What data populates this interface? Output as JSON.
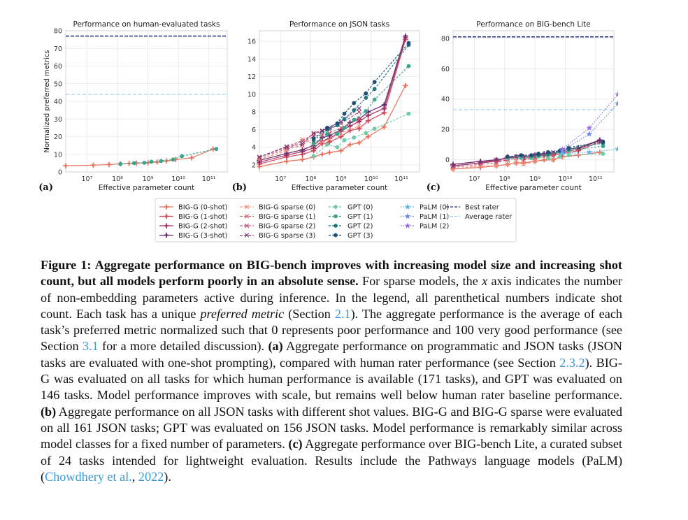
{
  "figure": {
    "panels": [
      {
        "letter": "(a)",
        "title": "Performance on human-evaluated tasks",
        "ylabel": "Normalized preferred metrics",
        "xlabel": "Effective parameter count",
        "yticks": [
          "0",
          "10",
          "20",
          "30",
          "40",
          "50",
          "60",
          "70",
          "80"
        ],
        "xticks": [
          "10⁷",
          "10⁸",
          "10⁹",
          "10¹⁰",
          "10¹¹"
        ]
      },
      {
        "letter": "(b)",
        "title": "Performance on JSON tasks",
        "ylabel": "",
        "xlabel": "Effective parameter count",
        "yticks": [
          "2",
          "4",
          "6",
          "8",
          "10",
          "12",
          "14",
          "16"
        ],
        "xticks": [
          "10⁷",
          "10⁸",
          "10⁹",
          "10¹⁰",
          "10¹¹"
        ]
      },
      {
        "letter": "(c)",
        "title": "Performance on BIG-bench Lite",
        "ylabel": "",
        "xlabel": "Effective parameter count",
        "yticks": [
          "0",
          "20",
          "40",
          "60",
          "80"
        ],
        "xticks": [
          "10⁷",
          "10⁸",
          "10⁹",
          "10¹⁰",
          "10¹¹"
        ]
      }
    ],
    "legend": [
      [
        "BIG-G (0-shot)",
        "BIG-G sparse (0)",
        "GPT (0)",
        "PaLM (0)",
        "Best rater"
      ],
      [
        "BIG-G (1-shot)",
        "BIG-G sparse (1)",
        "GPT (1)",
        "PaLM (1)",
        "Average rater"
      ],
      [
        "BIG-G (2-shot)",
        "BIG-G sparse (2)",
        "GPT (2)",
        "PaLM (2)",
        ""
      ],
      [
        "BIG-G (3-shot)",
        "BIG-G sparse (3)",
        "GPT (3)",
        "",
        ""
      ]
    ],
    "colors": {
      "bigg": [
        "#e8735f",
        "#d04a5d",
        "#a83464",
        "#6b2a6e"
      ],
      "sparse": [
        "#f08a73",
        "#d95a6a",
        "#b54570",
        "#7a3575"
      ],
      "gpt": [
        "#6fc9a5",
        "#3aa58c",
        "#23787f",
        "#1f4e77"
      ],
      "palm": [
        "#5bb7e6",
        "#6a8ee8",
        "#9b6fe0"
      ],
      "best": "#1f2d7a",
      "avg": "#9ecfea"
    }
  },
  "chart_data": [
    {
      "type": "line",
      "title": "Performance on human-evaluated tasks",
      "xlabel": "Effective parameter count",
      "ylabel": "Normalized preferred metrics",
      "xscale": "log",
      "xlim": [
        2000000.0,
        400000000000.0
      ],
      "ylim": [
        0,
        80
      ],
      "hlines": [
        {
          "name": "Best rater",
          "y": 77
        },
        {
          "name": "Average rater",
          "y": 44
        }
      ],
      "series": [
        {
          "name": "BIG-G (0-shot)",
          "x": [
            2000000.0,
            16000000.0,
            53000000.0,
            125000000.0,
            240000000.0,
            420000000.0,
            1000000000.0,
            2000000000.0,
            4000000000.0,
            8000000000.0,
            27000000000.0,
            137000000000.0
          ],
          "y": [
            3.5,
            3.8,
            4.2,
            4.6,
            4.8,
            5,
            5.2,
            5.6,
            6.2,
            7,
            8,
            13
          ]
        },
        {
          "name": "GPT (1)",
          "x": [
            125000000.0,
            350000000.0,
            760000000.0,
            1300000000.0,
            2700000000.0,
            6700000000.0,
            13000000000.0,
            175000000000.0
          ],
          "y": [
            4.5,
            5,
            5.2,
            5.8,
            6.2,
            7,
            9,
            13
          ]
        }
      ]
    },
    {
      "type": "line",
      "title": "Performance on JSON tasks",
      "xlabel": "Effective parameter count",
      "xscale": "log",
      "xlim": [
        2000000.0,
        400000000000.0
      ],
      "ylim": [
        1.2,
        17.2
      ],
      "series": [
        {
          "name": "BIG-G (0-shot)",
          "x": [
            2000000.0,
            16000000.0,
            53000000.0,
            125000000.0,
            240000000.0,
            420000000.0,
            1000000000.0,
            2000000000.0,
            4000000000.0,
            8000000000.0,
            27000000000.0,
            137000000000.0
          ],
          "y": [
            1.8,
            2.4,
            2.6,
            2.9,
            3.2,
            3.4,
            3.6,
            4.3,
            4.5,
            5.2,
            6.3,
            11
          ]
        },
        {
          "name": "BIG-G (1-shot)",
          "x": [
            2000000.0,
            16000000.0,
            53000000.0,
            125000000.0,
            240000000.0,
            420000000.0,
            1000000000.0,
            2000000000.0,
            4000000000.0,
            8000000000.0,
            27000000000.0,
            137000000000.0
          ],
          "y": [
            2.1,
            2.9,
            3.2,
            3.6,
            4.4,
            4.6,
            5.2,
            5.9,
            6.1,
            7,
            7.9,
            16.2
          ]
        },
        {
          "name": "BIG-G (2-shot)",
          "x": [
            2000000.0,
            16000000.0,
            53000000.0,
            125000000.0,
            240000000.0,
            420000000.0,
            1000000000.0,
            2000000000.0,
            4000000000.0,
            8000000000.0,
            27000000000.0,
            137000000000.0
          ],
          "y": [
            2.3,
            3.1,
            3.5,
            3.9,
            4.7,
            5,
            5.8,
            6.4,
            6.9,
            7.6,
            8.4,
            16.4
          ]
        },
        {
          "name": "BIG-G (3-shot)",
          "x": [
            2000000.0,
            16000000.0,
            53000000.0,
            125000000.0,
            240000000.0,
            420000000.0,
            1000000000.0,
            2000000000.0,
            4000000000.0,
            8000000000.0,
            27000000000.0,
            137000000000.0
          ],
          "y": [
            2.5,
            3.3,
            3.7,
            4.2,
            5.1,
            5.3,
            6,
            6.8,
            7.2,
            8,
            8.8,
            16.6
          ]
        },
        {
          "name": "BIG-G sparse (0)",
          "x": [
            2000000.0,
            16000000.0,
            53000000.0,
            125000000.0,
            240000000.0,
            420000000.0,
            1000000000.0,
            4000000000.0
          ],
          "y": [
            2.6,
            3.6,
            4.9,
            4.4,
            4.6,
            4.9,
            5.6,
            6.4
          ]
        },
        {
          "name": "BIG-G sparse (1)",
          "x": [
            2000000.0,
            16000000.0,
            53000000.0,
            125000000.0,
            240000000.0,
            420000000.0,
            1000000000.0,
            4000000000.0
          ],
          "y": [
            2.8,
            3.8,
            4.2,
            5.3,
            5.4,
            5.6,
            6.2,
            7.2
          ]
        },
        {
          "name": "BIG-G sparse (2)",
          "x": [
            2000000.0,
            16000000.0,
            53000000.0,
            125000000.0,
            240000000.0,
            420000000.0,
            1000000000.0,
            4000000000.0
          ],
          "y": [
            2.9,
            4.1,
            4.7,
            5.5,
            5.8,
            6,
            6.7,
            8
          ]
        },
        {
          "name": "BIG-G sparse (3)",
          "x": [
            2000000.0,
            16000000.0,
            53000000.0,
            125000000.0,
            240000000.0,
            420000000.0,
            1000000000.0,
            4000000000.0
          ],
          "y": [
            2.9,
            4,
            4.4,
            5.6,
            5.9,
            6.2,
            6.9,
            8.4
          ]
        },
        {
          "name": "GPT (0)",
          "x": [
            125000000.0,
            350000000.0,
            760000000.0,
            1300000000.0,
            2700000000.0,
            6700000000.0,
            13000000000.0,
            175000000000.0
          ],
          "y": [
            3,
            4.3,
            4,
            4.8,
            5.1,
            5.6,
            6.1,
            7.8
          ]
        },
        {
          "name": "GPT (1)",
          "x": [
            125000000.0,
            350000000.0,
            760000000.0,
            1300000000.0,
            2700000000.0,
            6700000000.0,
            13000000000.0,
            175000000000.0
          ],
          "y": [
            4.4,
            5.5,
            5.5,
            6.2,
            7.1,
            8.1,
            9.4,
            13.2
          ]
        },
        {
          "name": "GPT (2)",
          "x": [
            125000000.0,
            350000000.0,
            760000000.0,
            1300000000.0,
            2700000000.0,
            6700000000.0,
            13000000000.0,
            175000000000.0
          ],
          "y": [
            4.8,
            6,
            6.5,
            7.2,
            8.2,
            9.6,
            10.6,
            15.6
          ]
        },
        {
          "name": "GPT (3)",
          "x": [
            125000000.0,
            350000000.0,
            760000000.0,
            1300000000.0,
            2700000000.0,
            6700000000.0,
            13000000000.0,
            175000000000.0
          ],
          "y": [
            5,
            6.2,
            6.7,
            7.8,
            9,
            10.1,
            11.4,
            15.8
          ]
        }
      ]
    },
    {
      "type": "line",
      "title": "Performance on BIG-bench Lite",
      "xlabel": "Effective parameter count",
      "xscale": "log",
      "xlim": [
        2000000.0,
        400000000000.0
      ],
      "ylim": [
        -8,
        85
      ],
      "hlines": [
        {
          "name": "Best rater",
          "y": 81
        },
        {
          "name": "Average rater",
          "y": 33
        }
      ],
      "series": [
        {
          "name": "BIG-G (0-shot)",
          "x": [
            2000000.0,
            16000000.0,
            53000000.0,
            125000000.0,
            240000000.0,
            420000000.0,
            1000000000.0,
            2000000000.0,
            4000000000.0,
            8000000000.0,
            27000000000.0,
            137000000000.0
          ],
          "y": [
            -6,
            -5,
            -4,
            -3,
            -2,
            -2,
            -1,
            0,
            0,
            2,
            3,
            5
          ]
        },
        {
          "name": "BIG-G (1-shot)",
          "x": [
            2000000.0,
            16000000.0,
            53000000.0,
            125000000.0,
            240000000.0,
            420000000.0,
            1000000000.0,
            2000000000.0,
            4000000000.0,
            8000000000.0,
            27000000000.0,
            137000000000.0
          ],
          "y": [
            -4,
            -2,
            0,
            1,
            2,
            1,
            2,
            3,
            3,
            4,
            6,
            12
          ]
        },
        {
          "name": "BIG-G (2-shot)",
          "x": [
            2000000.0,
            16000000.0,
            53000000.0,
            125000000.0,
            240000000.0,
            420000000.0,
            1000000000.0,
            2000000000.0,
            4000000000.0,
            8000000000.0,
            27000000000.0,
            137000000000.0
          ],
          "y": [
            -4,
            -2,
            -1,
            2,
            2,
            2,
            3,
            3,
            4,
            5,
            7,
            13
          ]
        },
        {
          "name": "BIG-G (3-shot)",
          "x": [
            2000000.0,
            16000000.0,
            53000000.0,
            125000000.0,
            240000000.0,
            420000000.0,
            1000000000.0,
            2000000000.0,
            4000000000.0,
            8000000000.0,
            27000000000.0,
            137000000000.0
          ],
          "y": [
            -3,
            -1,
            0,
            1,
            2,
            2,
            3,
            4,
            4,
            6,
            8,
            13
          ]
        },
        {
          "name": "BIG-G sparse (0)",
          "x": [
            2000000.0,
            16000000.0,
            53000000.0,
            125000000.0,
            240000000.0,
            420000000.0,
            1000000000.0,
            4000000000.0
          ],
          "y": [
            -6,
            -4,
            -4,
            -3,
            -2,
            -3,
            -1,
            0
          ]
        },
        {
          "name": "BIG-G sparse (1)",
          "x": [
            2000000.0,
            16000000.0,
            53000000.0,
            125000000.0,
            240000000.0,
            420000000.0,
            1000000000.0,
            4000000000.0
          ],
          "y": [
            -5,
            -3,
            -2,
            0,
            1,
            0,
            1,
            3
          ]
        },
        {
          "name": "BIG-G sparse (2)",
          "x": [
            2000000.0,
            16000000.0,
            53000000.0,
            125000000.0,
            240000000.0,
            420000000.0,
            1000000000.0,
            4000000000.0
          ],
          "y": [
            -4,
            -2,
            -1,
            0,
            2,
            1,
            2,
            4
          ]
        },
        {
          "name": "BIG-G sparse (3)",
          "x": [
            2000000.0,
            16000000.0,
            53000000.0,
            125000000.0,
            240000000.0,
            420000000.0,
            1000000000.0,
            4000000000.0
          ],
          "y": [
            -4,
            -2,
            0,
            1,
            2,
            2,
            3,
            5
          ]
        },
        {
          "name": "GPT (0)",
          "x": [
            125000000.0,
            350000000.0,
            760000000.0,
            1300000000.0,
            2700000000.0,
            6700000000.0,
            13000000000.0,
            175000000000.0
          ],
          "y": [
            1,
            1,
            1,
            2,
            1,
            2,
            3,
            4
          ]
        },
        {
          "name": "GPT (1)",
          "x": [
            125000000.0,
            350000000.0,
            760000000.0,
            1300000000.0,
            2700000000.0,
            6700000000.0,
            13000000000.0,
            175000000000.0
          ],
          "y": [
            2,
            2,
            2,
            3,
            3,
            5,
            6,
            9
          ]
        },
        {
          "name": "GPT (2)",
          "x": [
            125000000.0,
            350000000.0,
            760000000.0,
            1300000000.0,
            2700000000.0,
            6700000000.0,
            13000000000.0,
            175000000000.0
          ],
          "y": [
            2,
            3,
            3,
            3,
            4,
            6,
            7,
            11
          ]
        },
        {
          "name": "GPT (3)",
          "x": [
            125000000.0,
            350000000.0,
            760000000.0,
            1300000000.0,
            2700000000.0,
            6700000000.0,
            13000000000.0,
            175000000000.0
          ],
          "y": [
            2,
            3,
            3,
            4,
            5,
            6,
            8,
            12
          ]
        },
        {
          "name": "PaLM (0)",
          "x": [
            8000000000.0,
            62000000000.0,
            540000000000.0
          ],
          "y": [
            4,
            5,
            7
          ]
        },
        {
          "name": "PaLM (1)",
          "x": [
            8000000000.0,
            62000000000.0,
            540000000000.0
          ],
          "y": [
            6,
            17,
            37
          ]
        },
        {
          "name": "PaLM (2)",
          "x": [
            8000000000.0,
            62000000000.0,
            540000000000.0
          ],
          "y": [
            7,
            21,
            43
          ]
        }
      ]
    }
  ],
  "caption": {
    "label": "Figure 1: ",
    "bold": "Aggregate performance on BIG-bench improves with increasing model size and increasing shot count, but all models perform poorly in an absolute sense.",
    "t1": " For sparse models, the ",
    "xvar": "x",
    "t2": " axis indicates the number of non-embedding parameters active during inference. In the legend, all parenthetical numbers indicate shot count. Each task has a unique ",
    "pm": "preferred metric",
    "t3": " (Section ",
    "ref1": "2.1",
    "t4": "). The aggregate performance is the average of each task’s preferred metric normalized such that 0 represents poor performance and 100 very good performance (see Section ",
    "ref2": "3.1",
    "t5": " for a more detailed discussion). ",
    "a": "(a)",
    "t6": " Aggregate performance on programmatic and JSON tasks (JSON tasks are evaluated with one-shot prompting), compared with human rater performance (see Section ",
    "ref3": "2.3.2",
    "t7": "). BIG-G was evaluated on all tasks for which human performance is available (171 tasks), and GPT was evaluated on 146 tasks. Model performance improves with scale, but remains well below human rater baseline performance. ",
    "b": "(b)",
    "t8": " Aggregate performance on all JSON tasks with different shot values. BIG-G and BIG-G sparse were evaluated on all 161 JSON tasks; GPT was evaluated on 156 JSON tasks. Model performance is remarkably similar across model classes for a fixed number of parameters. ",
    "c": "(c)",
    "t9": " Aggregate performance over BIG-bench Lite, a curated subset of 24 tasks intended for lightweight evaluation. Results include the Pathways language models (PaLM) (",
    "cite": "Chowdhery et al.",
    "t10": ", ",
    "year": "2022",
    "t11": ")."
  }
}
